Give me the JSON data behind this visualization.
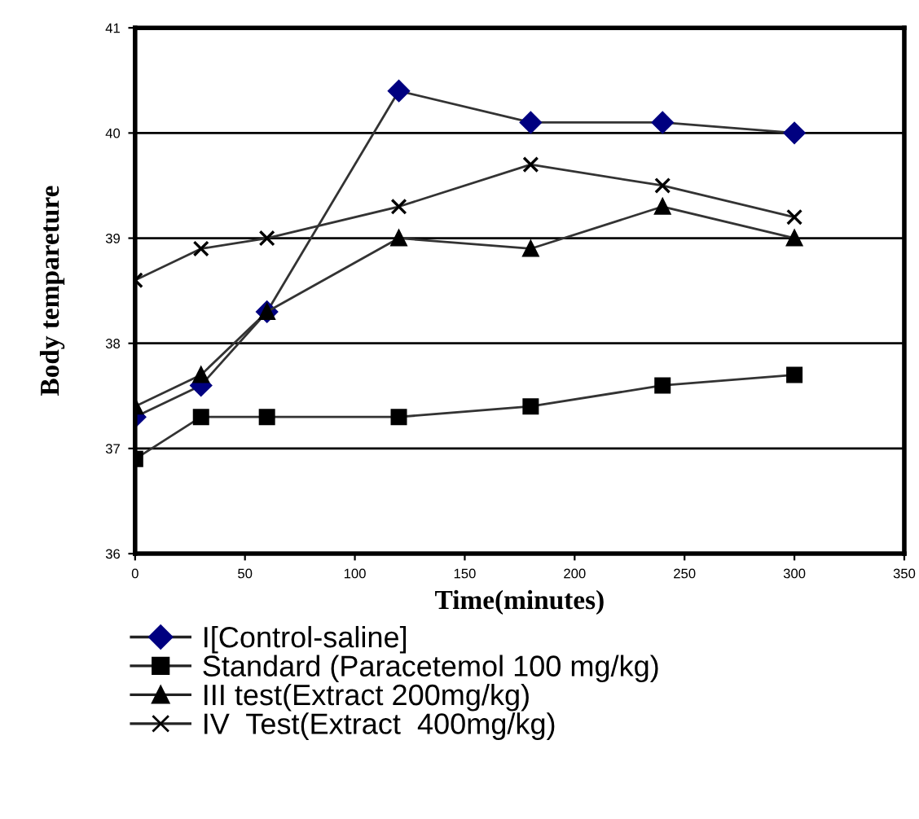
{
  "chart_data": {
    "type": "line",
    "xlabel": "Time(minutes)",
    "ylabel": "Body tempareture",
    "x": [
      0,
      30,
      60,
      120,
      180,
      240,
      300
    ],
    "series": [
      {
        "name": "I[Control-saline]",
        "color": "#000080",
        "marker": "diamond",
        "values": [
          37.3,
          37.6,
          38.3,
          40.4,
          40.1,
          40.1,
          40.0
        ]
      },
      {
        "name": "Standard (Paracetemol 100 mg/kg)",
        "color": "#000000",
        "marker": "square",
        "values": [
          36.9,
          37.3,
          37.3,
          37.3,
          37.4,
          37.6,
          37.7
        ]
      },
      {
        "name": "III test(Extract 200mg/kg)",
        "color": "#000000",
        "marker": "triangle",
        "values": [
          37.4,
          37.7,
          38.3,
          39.0,
          38.9,
          39.3,
          39.0
        ]
      },
      {
        "name": "IV  Test(Extract  400mg/kg)",
        "color": "#000000",
        "marker": "cross",
        "values": [
          38.6,
          38.9,
          39.0,
          39.3,
          39.7,
          39.5,
          39.2
        ]
      }
    ],
    "xlim": [
      0,
      350
    ],
    "xticks": [
      0,
      50,
      100,
      150,
      200,
      250,
      300,
      350
    ],
    "ylim": [
      36,
      41
    ],
    "yticks": [
      36,
      37,
      38,
      39,
      40,
      41
    ],
    "grid": "y",
    "legend": "bottom",
    "line_style": "solid"
  }
}
